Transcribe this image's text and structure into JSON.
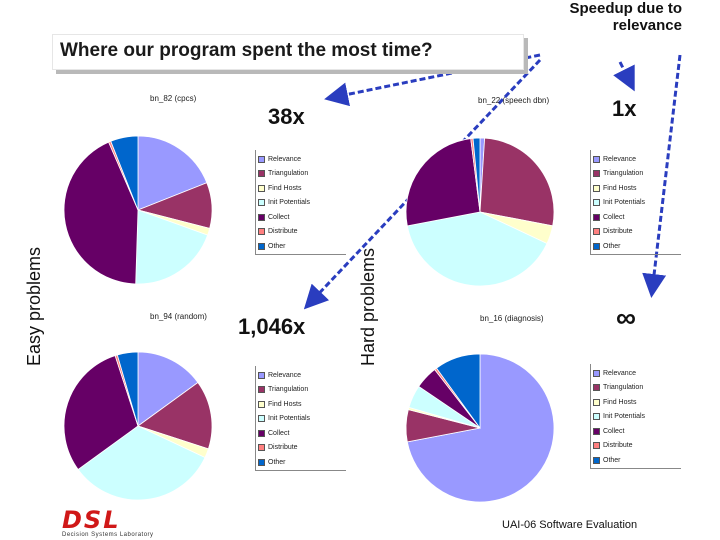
{
  "slide": {
    "title": "Where our program spent the most time?",
    "speedup_label": "Speedup due to relevance",
    "easy_label": "Easy problems",
    "hard_label": "Hard problems",
    "footer": "UAI-06 Software Evaluation",
    "logo_text": "DSL",
    "logo_subtext": "Decision Systems Laboratory"
  },
  "annotations": {
    "a38x": "38x",
    "a1x": "1x",
    "a1046x": "1,046x",
    "ainf": "∞"
  },
  "legend_labels": [
    "Relevance",
    "Triangulation",
    "Find Hosts",
    "Init Potentials",
    "Collect",
    "Distribute",
    "Other"
  ],
  "colors": [
    "#9999ff",
    "#993366",
    "#ffffcc",
    "#ccffff",
    "#660066",
    "#ff8080",
    "#0066cc"
  ],
  "chart_data": [
    {
      "type": "pie",
      "title": "bn_82 (cpcs)",
      "categories": [
        "Relevance",
        "Triangulation",
        "Find Hosts",
        "Init Potentials",
        "Collect",
        "Distribute",
        "Other"
      ],
      "values": [
        19,
        10,
        1.5,
        20,
        43,
        0.5,
        6
      ]
    },
    {
      "type": "pie",
      "title": "bn_22 (speech dbn)",
      "categories": [
        "Relevance",
        "Triangulation",
        "Find Hosts",
        "Init Potentials",
        "Collect",
        "Distribute",
        "Other"
      ],
      "values": [
        1,
        27,
        4,
        40,
        26,
        0.5,
        1.5
      ]
    },
    {
      "type": "pie",
      "title": "bn_94 (random)",
      "categories": [
        "Relevance",
        "Triangulation",
        "Find Hosts",
        "Init Potentials",
        "Collect",
        "Distribute",
        "Other"
      ],
      "values": [
        15,
        15,
        2,
        33,
        30,
        0.5,
        4.5
      ]
    },
    {
      "type": "pie",
      "title": "bn_16 (diagnosis)",
      "categories": [
        "Relevance",
        "Triangulation",
        "Find Hosts",
        "Init Potentials",
        "Collect",
        "Distribute",
        "Other"
      ],
      "values": [
        72,
        7,
        0.5,
        5,
        5,
        0.5,
        10
      ]
    }
  ]
}
